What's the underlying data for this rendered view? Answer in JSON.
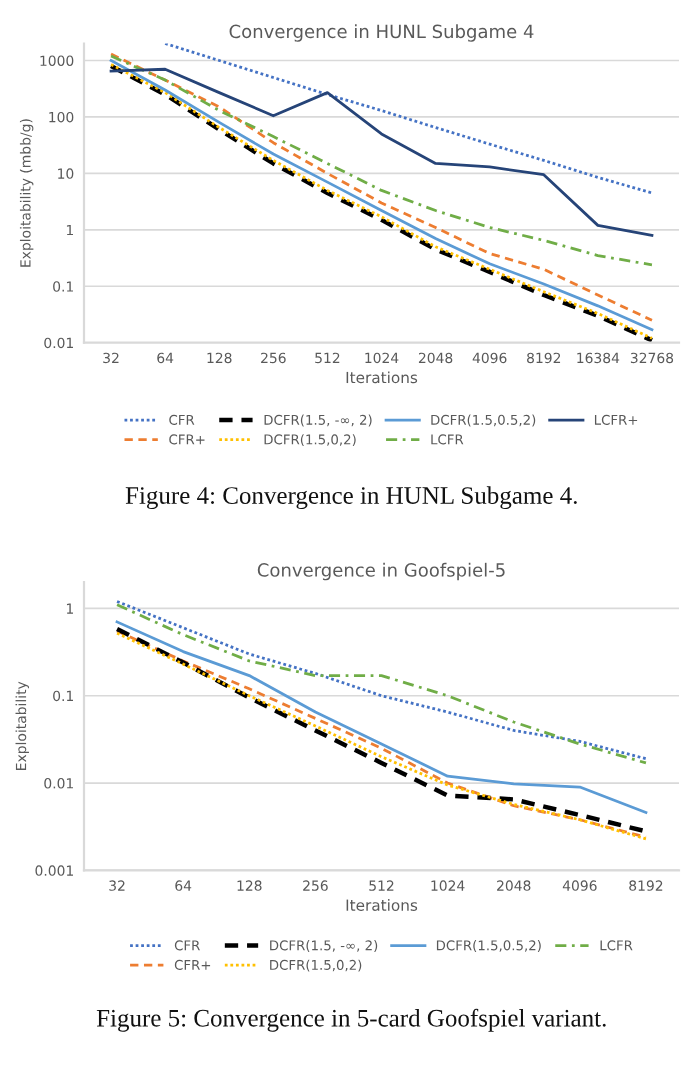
{
  "chart_data": [
    {
      "type": "line",
      "title": "Convergence in HUNL Subgame 4",
      "xlabel": "Iterations",
      "ylabel": "Exploitability (mbb/g)",
      "log": "y",
      "grid": "y",
      "legend": "bottom",
      "marker": "none",
      "categories": [
        "32",
        "64",
        "128",
        "256",
        "512",
        "1024",
        "2048",
        "4096",
        "8192",
        "16384",
        "32768"
      ],
      "ylim": [
        0.01,
        2000
      ],
      "yticks": [
        0.01,
        0.1,
        1,
        10,
        100,
        1000
      ],
      "series": [
        {
          "name": "CFR",
          "color": "#4472c4",
          "line_style": "dotted",
          "values": [
            null,
            2000,
            1000,
            500,
            250,
            130,
            65,
            33,
            17,
            8.5,
            4.5
          ]
        },
        {
          "name": "CFR+",
          "color": "#ed7d31",
          "line_style": "dashed",
          "values": [
            1300,
            450,
            150,
            35,
            10,
            3,
            1.1,
            0.38,
            0.2,
            0.07,
            0.025
          ]
        },
        {
          "name": "DCFR(1.5, -∞, 2)",
          "color": "#000000",
          "line_style": "dashed",
          "values": [
            800,
            250,
            60,
            15,
            4.5,
            1.5,
            0.45,
            0.18,
            0.07,
            0.03,
            0.011
          ]
        },
        {
          "name": "DCFR(1.5,0,2)",
          "color": "#ffc000",
          "line_style": "dotted",
          "values": [
            850,
            270,
            65,
            17,
            5,
            1.7,
            0.5,
            0.2,
            0.08,
            0.033,
            0.012
          ]
        },
        {
          "name": "DCFR(1.5,0.5,2)",
          "color": "#5b9bd5",
          "line_style": "solid",
          "values": [
            1000,
            300,
            80,
            22,
            7,
            2.2,
            0.7,
            0.25,
            0.11,
            0.045,
            0.017
          ]
        },
        {
          "name": "LCFR",
          "color": "#70ad47",
          "line_style": "dashdot",
          "values": [
            1200,
            450,
            130,
            45,
            15,
            5,
            2.2,
            1.1,
            0.65,
            0.35,
            0.24
          ]
        },
        {
          "name": "LCFR+",
          "color": "#264478",
          "line_style": "solid",
          "values": [
            650,
            700,
            270,
            105,
            270,
            50,
            15,
            13,
            9.5,
            1.2,
            0.8
          ]
        }
      ],
      "annotations": [
        "Figure 4: Convergence in HUNL Subgame 4."
      ]
    },
    {
      "type": "line",
      "title": "Convergence in Goofspiel-5",
      "xlabel": "Iterations",
      "ylabel": "Exploitability",
      "log": "y",
      "grid": "y",
      "legend": "bottom",
      "marker": "none",
      "categories": [
        "32",
        "64",
        "128",
        "256",
        "512",
        "1024",
        "2048",
        "4096",
        "8192"
      ],
      "ylim": [
        0.001,
        2
      ],
      "yticks": [
        0.001,
        0.01,
        0.1,
        1
      ],
      "series": [
        {
          "name": "CFR",
          "color": "#4472c4",
          "line_style": "dotted",
          "values": [
            1.2,
            0.6,
            0.3,
            0.18,
            0.1,
            0.065,
            0.04,
            0.03,
            0.019
          ]
        },
        {
          "name": "CFR+",
          "color": "#ed7d31",
          "line_style": "dashed",
          "values": [
            0.55,
            0.25,
            0.12,
            0.055,
            0.025,
            0.01,
            0.0055,
            0.0038,
            0.0024
          ]
        },
        {
          "name": "DCFR(1.5, -∞, 2)",
          "color": "#000000",
          "line_style": "dashed",
          "values": [
            0.58,
            0.24,
            0.095,
            0.04,
            0.017,
            0.0072,
            0.0065,
            0.0043,
            0.0028
          ]
        },
        {
          "name": "DCFR(1.5,0,2)",
          "color": "#ffc000",
          "line_style": "dotted",
          "values": [
            0.52,
            0.23,
            0.1,
            0.045,
            0.02,
            0.0095,
            0.0057,
            0.0038,
            0.0023
          ]
        },
        {
          "name": "DCFR(1.5,0.5,2)",
          "color": "#5b9bd5",
          "line_style": "solid",
          "values": [
            0.7,
            0.32,
            0.17,
            0.065,
            0.028,
            0.012,
            0.0098,
            0.009,
            0.0046
          ]
        },
        {
          "name": "LCFR",
          "color": "#70ad47",
          "line_style": "dashdot",
          "values": [
            1.1,
            0.5,
            0.25,
            0.17,
            0.17,
            0.1,
            0.05,
            0.028,
            0.017
          ]
        }
      ],
      "annotations": [
        "Figure 5: Convergence in 5-card Goofspiel variant."
      ]
    }
  ]
}
